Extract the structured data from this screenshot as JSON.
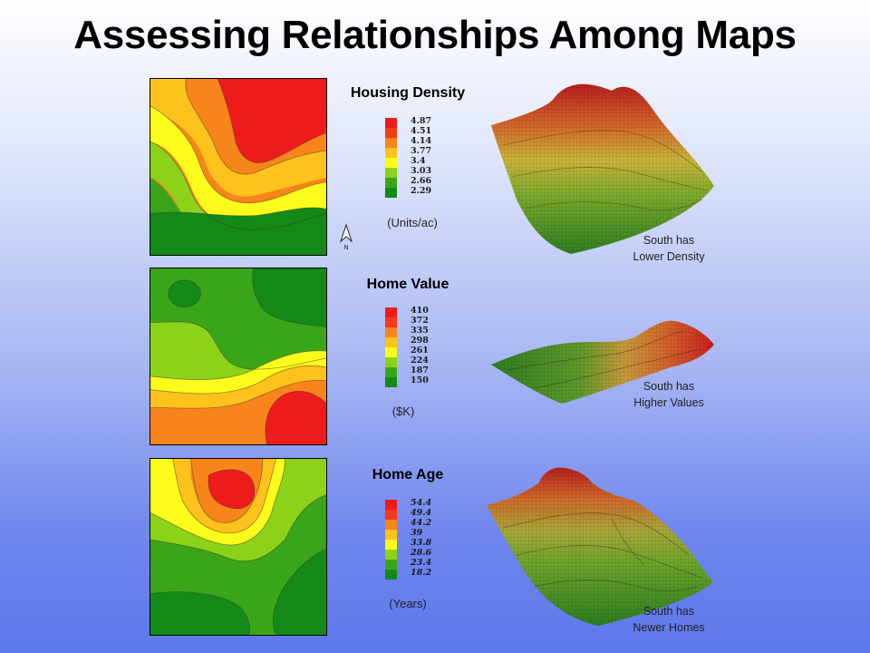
{
  "title": "Assessing Relationships Among Maps",
  "colors": {
    "ramp": [
      "#ee1b1b",
      "#f23a1a",
      "#f7851b",
      "#fdc21b",
      "#fdfb1b",
      "#8bd219",
      "#3ba519",
      "#138a17"
    ]
  },
  "north_icon": "north-arrow-icon",
  "panels": [
    {
      "name": "Housing Density",
      "unit": "(Units/ac)",
      "ticks": [
        "4.87",
        "4.51",
        "4.14",
        "3.77",
        "3.4",
        "3.03",
        "2.66",
        "2.29"
      ],
      "caption_line1": "South has",
      "caption_line2": "Lower Density"
    },
    {
      "name": "Home Value",
      "unit": "($K)",
      "ticks": [
        "410",
        "372",
        "335",
        "298",
        "261",
        "224",
        "187",
        "150"
      ],
      "caption_line1": "South has",
      "caption_line2": "Higher Values"
    },
    {
      "name": "Home Age",
      "unit": "(Years)",
      "ticks": [
        "54.4",
        "49.4",
        "44.2",
        "39",
        "33.8",
        "28.6",
        "23.4",
        "18.2"
      ],
      "caption_line1": "South has",
      "caption_line2": "Newer Homes"
    }
  ]
}
